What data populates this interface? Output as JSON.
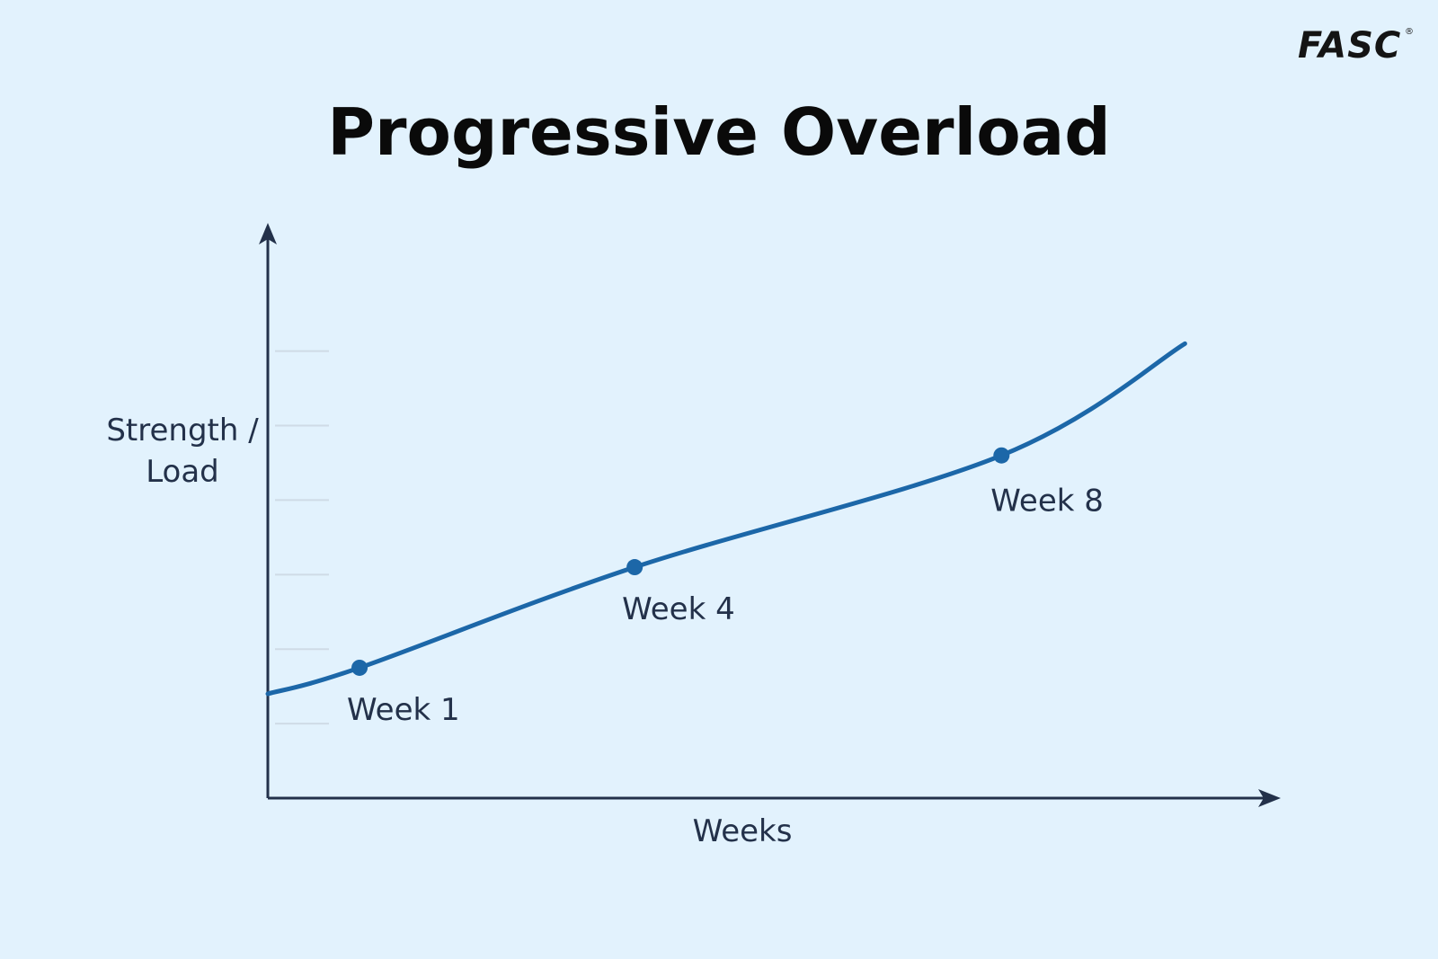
{
  "brand": {
    "logo_text": "FASC",
    "registered_mark": "®"
  },
  "chart_data": {
    "type": "line",
    "title": "Progressive Overload",
    "xlabel": "Weeks",
    "ylabel_lines": [
      "Strength /",
      "Load"
    ],
    "grid": false,
    "series": [
      {
        "x": [
          0,
          1,
          4,
          8,
          10
        ],
        "y": [
          1.4,
          1.75,
          3.1,
          4.6,
          6.1
        ]
      }
    ],
    "points": [
      {
        "x": 1,
        "y": 1.75,
        "label": "Week 1"
      },
      {
        "x": 4,
        "y": 3.1,
        "label": "Week 4"
      },
      {
        "x": 8,
        "y": 4.6,
        "label": "Week 8"
      }
    ],
    "xlim": [
      0,
      10.8
    ],
    "ylim": [
      0,
      8.3
    ],
    "y_ticks_marks": [
      1,
      2,
      3,
      4,
      5,
      6
    ],
    "colors": {
      "line": "#1c67a8",
      "axis": "#23314a",
      "tick": "#cfdbe6",
      "background": "#e2f2fd"
    }
  }
}
